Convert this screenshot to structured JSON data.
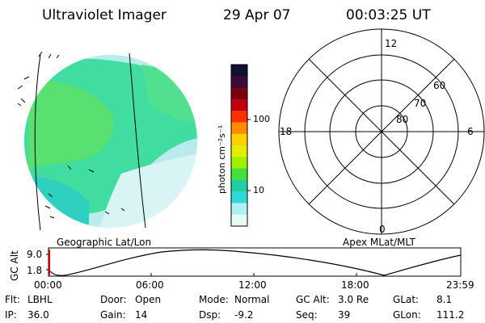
{
  "header": {
    "title": "Ultraviolet Imager",
    "date": "29 Apr 07",
    "time": "00:03:25 UT"
  },
  "image_panel": {
    "label": "Geographic Lat/Lon"
  },
  "colorbar": {
    "unit_label": "photon cm⁻²s⁻¹",
    "ticks": [
      "100",
      "10"
    ],
    "colors": [
      "#101030",
      "#3a0a3a",
      "#7a0010",
      "#c00010",
      "#ff3000",
      "#ff8c00",
      "#ffd000",
      "#e0f000",
      "#a0f000",
      "#40e040",
      "#20d0a0",
      "#30d8d8",
      "#b0f0f0",
      "#e6fafa"
    ]
  },
  "polar_plot": {
    "label": "Apex MLat/MLT",
    "mlt_labels": {
      "top": "12",
      "left": "18",
      "right": "6",
      "bottom": "0"
    },
    "lat_labels": [
      "60",
      "70",
      "80"
    ]
  },
  "altitude_plot": {
    "ylabel": "GC Alt",
    "yticks": [
      "9.0",
      "1.8"
    ],
    "xticks": [
      "00:00",
      "06:00",
      "12:00",
      "18:00",
      "23:59"
    ]
  },
  "info": {
    "row1": [
      {
        "label": "Flt:",
        "value": "LBHL"
      },
      {
        "label": "Door:",
        "value": "Open"
      },
      {
        "label": "Mode:",
        "value": "Normal"
      },
      {
        "label": "GC Alt:",
        "value": "3.0 Re"
      },
      {
        "label": "GLat:",
        "value": "8.1"
      }
    ],
    "row2": [
      {
        "label": "IP:",
        "value": "36.0"
      },
      {
        "label": "Gain:",
        "value": "14"
      },
      {
        "label": "Dsp:",
        "value": "-9.2"
      },
      {
        "label": "Seq:",
        "value": "39"
      },
      {
        "label": "GLon:",
        "value": "111.2"
      }
    ]
  }
}
